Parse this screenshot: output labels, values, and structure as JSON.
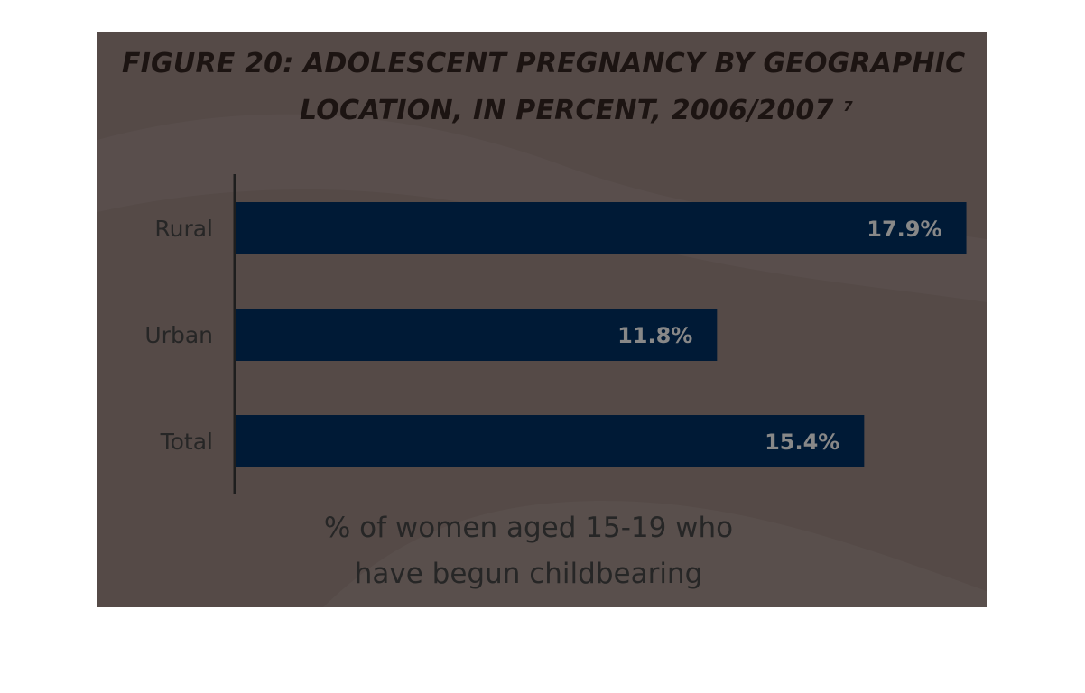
{
  "chart_data": {
    "type": "bar",
    "orientation": "horizontal",
    "title_lines": [
      "FIGURE 20: ADOLESCENT PREGNANCY BY GEOGRAPHIC",
      "LOCATION, IN PERCENT, 2006/2007"
    ],
    "title_footnote": "7",
    "categories": [
      "Rural",
      "Urban",
      "Total"
    ],
    "values": [
      17.9,
      11.8,
      15.4
    ],
    "value_labels": [
      "17.9%",
      "11.8%",
      "15.4%"
    ],
    "xlabel_lines": [
      "% of women aged 15-19 who",
      "have begun childbearing"
    ],
    "xlim": [
      0,
      19.5
    ],
    "grid": false,
    "colors": {
      "bar": "#001a36",
      "value_label": "#888888",
      "background": "#554a47",
      "title": "#1c1412",
      "category_label": "#262626"
    }
  }
}
